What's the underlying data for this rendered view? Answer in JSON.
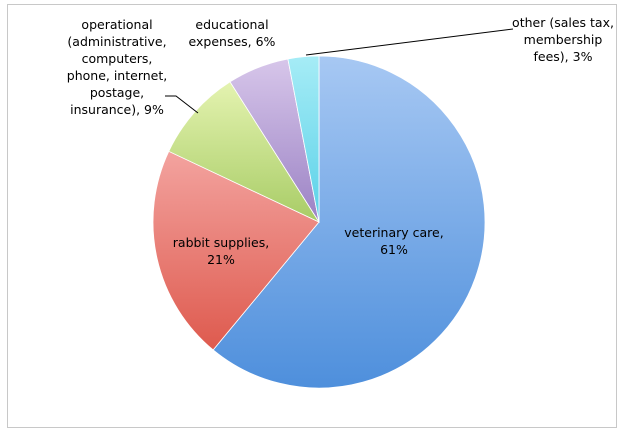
{
  "chart_data": {
    "type": "pie",
    "title": "",
    "legend": "none",
    "start_angle_deg": 0,
    "direction": "clockwise",
    "slices": [
      {
        "label_lines": [
          "veterinary care,",
          "61%"
        ],
        "value": 61,
        "color_light": "#a7c8f3",
        "color_dark": "#4e8fdc"
      },
      {
        "label_lines": [
          "rabbit supplies,",
          "21%"
        ],
        "value": 21,
        "color_light": "#f3a39f",
        "color_dark": "#de5a4e"
      },
      {
        "label_lines": [
          "operational",
          "(administrative,",
          "computers,",
          "phone, internet,",
          "postage,",
          "insurance), 9%"
        ],
        "value": 9,
        "color_light": "#e4f3b0",
        "color_dark": "#a8cc66"
      },
      {
        "label_lines": [
          "educational",
          "expenses, 6%"
        ],
        "value": 6,
        "color_light": "#d7c6ea",
        "color_dark": "#9b82c4"
      },
      {
        "label_lines": [
          "other (sales tax,",
          "membership",
          "fees), 3%"
        ],
        "value": 3,
        "color_light": "#a6ecf6",
        "color_dark": "#5ad1e8"
      }
    ]
  }
}
